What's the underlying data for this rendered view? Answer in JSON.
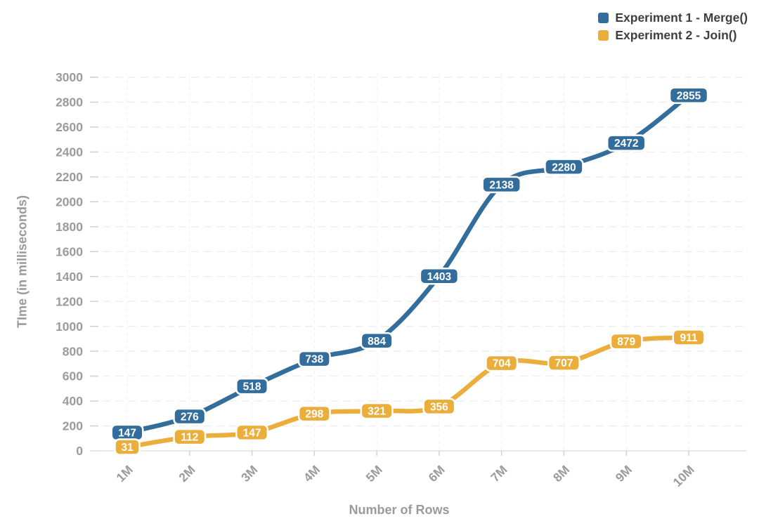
{
  "chart_data": {
    "type": "line",
    "categories": [
      "1M",
      "2M",
      "3M",
      "4M",
      "5M",
      "6M",
      "7M",
      "8M",
      "9M",
      "10M"
    ],
    "series": [
      {
        "name": "Experiment 1 - Merge()",
        "color": "#336D9C",
        "values": [
          147,
          276,
          518,
          738,
          884,
          1403,
          2138,
          2280,
          2472,
          2855
        ]
      },
      {
        "name": "Experiment 2 - Join()",
        "color": "#EBAE3B",
        "values": [
          31,
          112,
          147,
          298,
          321,
          356,
          704,
          707,
          879,
          911
        ]
      }
    ],
    "xlabel": "Number of Rows",
    "ylabel": "TIme (in milliseconds)",
    "ylim": [
      0,
      3000
    ],
    "ytick_step": 200,
    "grid": true,
    "legend_position": "top-right",
    "data_labels": true
  },
  "styles": {
    "series1_color": "#336D9C",
    "series2_color": "#EBAE3B",
    "tick_label_color": "#9B9B9B",
    "axis_title_color": "#9A9A9A",
    "legend_text_color": "#3F3F3F",
    "grid_color": "#EDEDED",
    "vertical_grid_color": "#F0F0F0",
    "axis_line_color": "#E3E3E3",
    "tick_mark_color": "#CFCFCF",
    "data_label_text_color": "#FFFFFF",
    "background": "#FFFFFF"
  }
}
